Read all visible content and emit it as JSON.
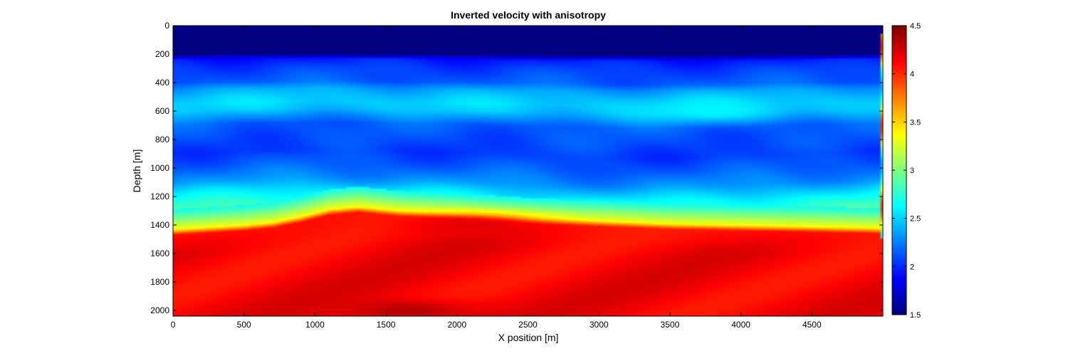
{
  "chart_data": {
    "type": "heatmap",
    "title": "Inverted velocity with anisotropy",
    "xlabel": "X position [m]",
    "ylabel": "Depth [m]",
    "xlim": [
      0,
      5000
    ],
    "ylim": [
      0,
      2040
    ],
    "y_reversed": true,
    "x_ticks": [
      0,
      500,
      1000,
      1500,
      2000,
      2500,
      3000,
      3500,
      4000,
      4500
    ],
    "y_ticks": [
      0,
      200,
      400,
      600,
      800,
      1000,
      1200,
      1400,
      1600,
      1800,
      2000
    ],
    "colorbar": {
      "colormap": "jet",
      "range": [
        1.5,
        4.5
      ],
      "ticks": [
        1.5,
        2,
        2.5,
        3,
        3.5,
        4,
        4.5
      ],
      "tick_labels": [
        "1.5",
        "2",
        "2.5",
        "3",
        "3.5",
        "4",
        "4.5"
      ]
    },
    "depth_profile": {
      "depth": [
        0,
        200,
        240,
        300,
        400,
        450,
        500,
        550,
        600,
        650,
        700,
        800,
        900,
        1000,
        1100,
        1150,
        1200,
        1300
      ],
      "velocity": [
        1.5,
        1.5,
        1.95,
        2.05,
        2.15,
        2.35,
        2.45,
        2.5,
        2.45,
        2.3,
        2.15,
        2.1,
        2.05,
        2.15,
        2.3,
        2.45,
        2.6,
        2.85
      ]
    },
    "interface_depth": {
      "x": [
        0,
        500,
        700,
        900,
        1100,
        1300,
        1600,
        2000,
        2500,
        3000,
        3500,
        4000,
        4500,
        4980
      ],
      "depth": [
        1430,
        1400,
        1380,
        1340,
        1290,
        1270,
        1300,
        1320,
        1350,
        1370,
        1390,
        1400,
        1410,
        1420
      ]
    },
    "below_interface_velocity": [
      4.05,
      4.25
    ],
    "anomalies": [
      {
        "x": 3800,
        "depth": 600,
        "velocity": 2.6
      },
      {
        "x": 1650,
        "depth": 2000,
        "velocity": 4.35
      },
      {
        "x": 2100,
        "depth": 1400,
        "velocity": 4.2
      }
    ]
  }
}
